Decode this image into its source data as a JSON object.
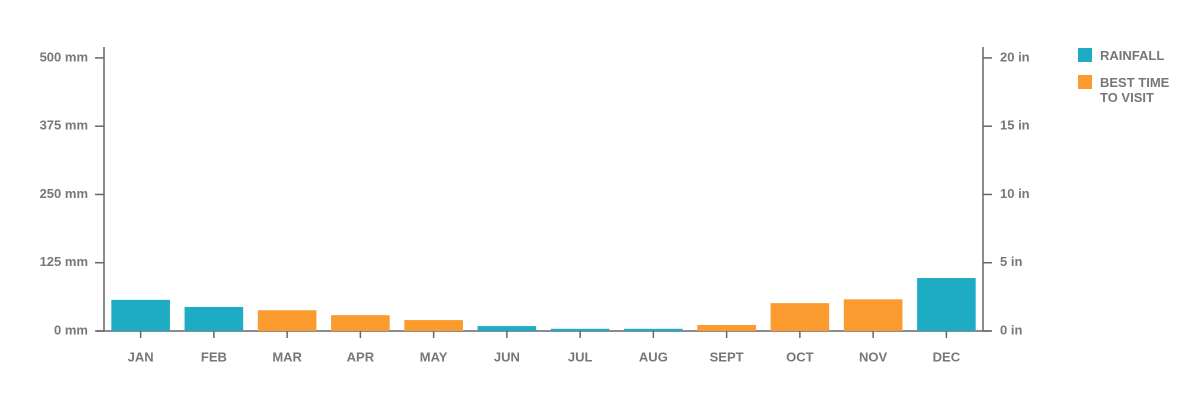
{
  "chart_data": {
    "type": "bar",
    "categories": [
      "JAN",
      "FEB",
      "MAR",
      "APR",
      "MAY",
      "JUN",
      "JUL",
      "AUG",
      "SEPT",
      "OCT",
      "NOV",
      "DEC"
    ],
    "series": [
      {
        "name": "RAINFALL",
        "color": "#1eabc4",
        "values": [
          57,
          44,
          null,
          null,
          null,
          9,
          4,
          4,
          null,
          null,
          null,
          97
        ]
      },
      {
        "name": "BEST TIME TO VISIT",
        "color": "#fb9a2f",
        "values": [
          null,
          null,
          38,
          29,
          20,
          null,
          null,
          null,
          11,
          51,
          58,
          null
        ]
      }
    ],
    "ylim": [
      0,
      520
    ],
    "yticks": [
      {
        "value": 0,
        "label": "0 mm"
      },
      {
        "value": 125,
        "label": "125 mm"
      },
      {
        "value": 250,
        "label": "250 mm"
      },
      {
        "value": 375,
        "label": "375 mm"
      },
      {
        "value": 500,
        "label": "500 mm"
      }
    ],
    "y2lim": [
      0,
      20.8
    ],
    "y2ticks": [
      {
        "value": 0,
        "label": "0 in"
      },
      {
        "value": 5,
        "label": "5 in"
      },
      {
        "value": 10,
        "label": "10 in"
      },
      {
        "value": 15,
        "label": "15 in"
      },
      {
        "value": 20,
        "label": "20 in"
      }
    ],
    "legend": "top-right"
  }
}
